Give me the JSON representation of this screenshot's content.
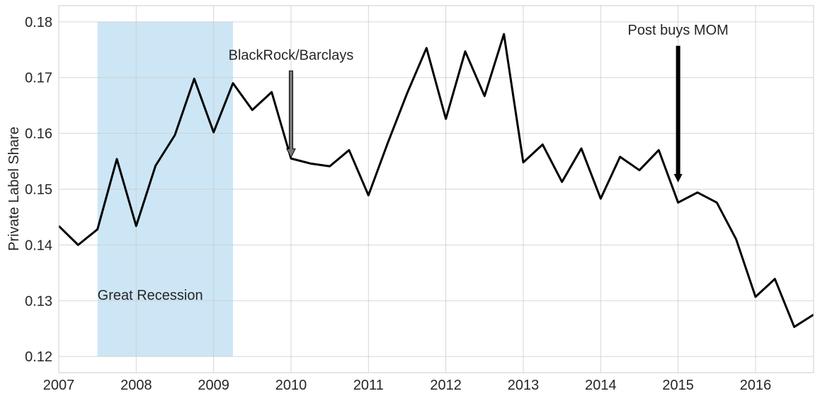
{
  "chart_data": {
    "type": "line",
    "y_label": "Private Label Share",
    "x": [
      2007,
      2007.25,
      2007.5,
      2007.75,
      2008,
      2008.25,
      2008.5,
      2008.75,
      2009,
      2009.25,
      2009.5,
      2009.75,
      2010,
      2010.25,
      2010.5,
      2010.75,
      2011,
      2011.25,
      2011.5,
      2011.75,
      2012,
      2012.25,
      2012.5,
      2012.75,
      2013,
      2013.25,
      2013.5,
      2013.75,
      2014,
      2014.25,
      2014.5,
      2014.75,
      2015,
      2015.25,
      2015.5,
      2015.75,
      2016,
      2016.25,
      2016.5,
      2016.75
    ],
    "series": [
      {
        "color": "#000000",
        "values": [
          0.1434,
          0.14,
          0.1428,
          0.1554,
          0.1434,
          0.1542,
          0.1597,
          0.1698,
          0.1602,
          0.169,
          0.1642,
          0.1674,
          0.1555,
          0.1546,
          0.1541,
          0.157,
          0.1489,
          0.1583,
          0.1672,
          0.1753,
          0.1626,
          0.1747,
          0.1667,
          0.1778,
          0.1548,
          0.158,
          0.1513,
          0.1573,
          0.1483,
          0.1558,
          0.1534,
          0.157,
          0.1476,
          0.1494,
          0.1476,
          0.141,
          0.1307,
          0.1339,
          0.1253,
          0.1275
        ]
      }
    ],
    "xlim": [
      2007,
      2016.75
    ],
    "xticks": [
      2007,
      2008,
      2009,
      2010,
      2011,
      2012,
      2013,
      2014,
      2015,
      2016
    ],
    "ylim": [
      0.1171,
      0.1829
    ],
    "yticks": [
      0.12,
      0.13,
      0.14,
      0.15,
      0.16,
      0.17,
      0.18
    ],
    "grid": true,
    "shaded_regions": [
      {
        "label": "Great Recession",
        "x": [
          2007.5,
          2009.25
        ],
        "y": [
          0.12,
          0.18
        ],
        "color": "#cde6f5"
      }
    ],
    "annotations": [
      {
        "text": "BlackRock/Barclays",
        "x": 2010,
        "y": [
          0.1712,
          0.1557
        ],
        "color": "#777777"
      },
      {
        "text": "Post buys MOM",
        "x": 2015,
        "y": [
          0.1757,
          0.1512
        ],
        "color": "#000000"
      }
    ]
  }
}
